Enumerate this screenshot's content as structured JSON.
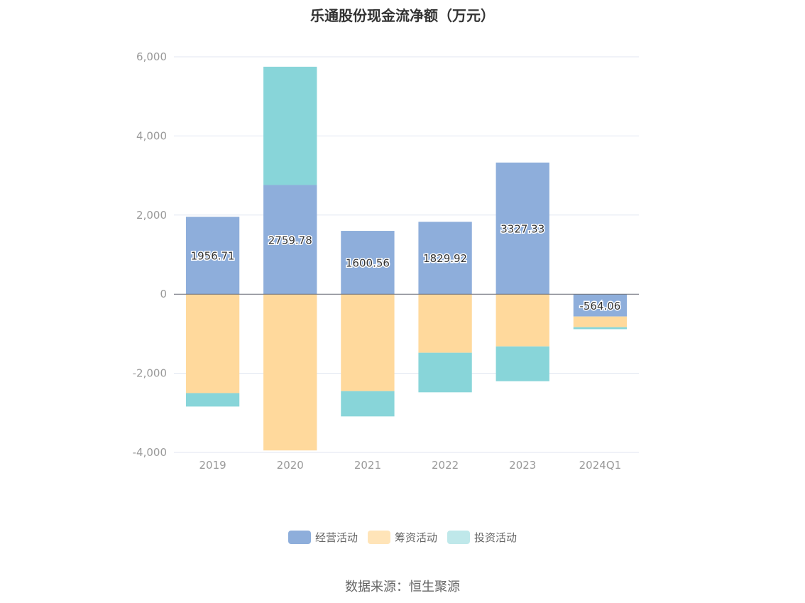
{
  "chart_data": {
    "type": "bar",
    "stacked": true,
    "title": "乐通股份现金流净额（万元）",
    "categories": [
      "2019",
      "2020",
      "2021",
      "2022",
      "2023",
      "2024Q1"
    ],
    "series": [
      {
        "name": "经营活动",
        "color": "#8eaedb",
        "values": [
          1956.71,
          2759.78,
          1600.56,
          1829.92,
          3327.33,
          -564.06
        ]
      },
      {
        "name": "筹资活动",
        "color": "#ffd99c",
        "values": [
          -2500,
          -3950,
          -2450,
          -1480,
          -1320,
          -270
        ]
      },
      {
        "name": "投资活动",
        "color": "#88d5d9",
        "values": [
          -340,
          2990,
          -640,
          -1000,
          -880,
          -50
        ]
      }
    ],
    "data_labels": [
      "1956.71",
      "2759.78",
      "1600.56",
      "1829.92",
      "3327.33",
      "-564.06"
    ],
    "y_ticks": [
      "6,000",
      "4,000",
      "2,000",
      "0",
      "-2,000",
      "-4,000"
    ],
    "ylim": [
      -4000,
      6000
    ],
    "grid": true,
    "legend_position": "bottom"
  },
  "source": "数据来源：恒生聚源"
}
